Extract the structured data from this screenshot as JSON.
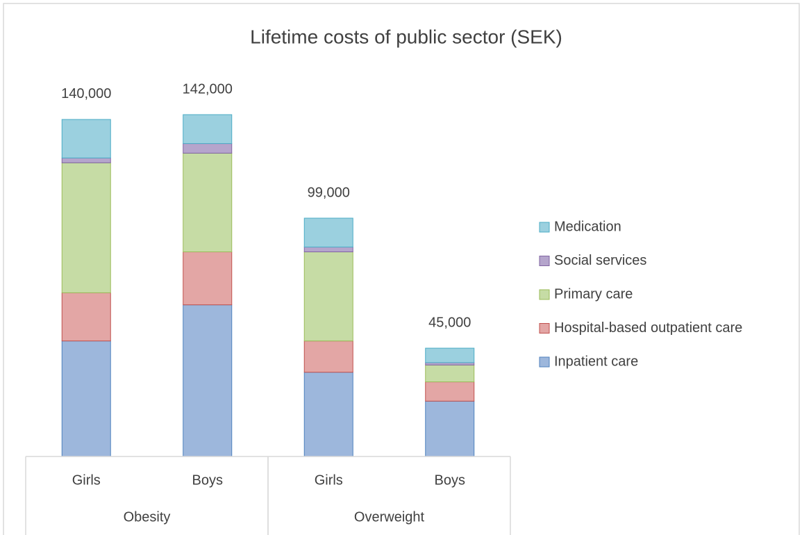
{
  "chart_data": {
    "type": "stacked-bar",
    "title": "Lifetime costs of public sector (SEK)",
    "groups": [
      {
        "name": "Obesity",
        "categories": [
          "Girls",
          "Boys"
        ]
      },
      {
        "name": "Overweight",
        "categories": [
          "Girls",
          "Boys"
        ]
      }
    ],
    "series": [
      {
        "name": "Inpatient care",
        "color": "#9db7dc",
        "border": "#4f81bd",
        "values": [
          48000,
          63000,
          35000,
          23000
        ]
      },
      {
        "name": "Hospital-based outpatient care",
        "color": "#e3a6a5",
        "border": "#c0504d",
        "values": [
          20000,
          22000,
          13000,
          8000
        ]
      },
      {
        "name": "Primary care",
        "color": "#c6dca5",
        "border": "#9bbb59",
        "values": [
          54000,
          41000,
          37000,
          7000
        ]
      },
      {
        "name": "Social services",
        "color": "#b5a5cc",
        "border": "#8064a2",
        "values": [
          2000,
          4000,
          2000,
          1000
        ]
      },
      {
        "name": "Medication",
        "color": "#9bd0df",
        "border": "#4bacc6",
        "values": [
          16000,
          12000,
          12000,
          6000
        ]
      }
    ],
    "totals": {
      "values": [
        140000,
        142000,
        99000,
        45000
      ],
      "value_labels": [
        "140,000",
        "142,000",
        "99,000",
        "45,000"
      ]
    },
    "legend": "right"
  }
}
